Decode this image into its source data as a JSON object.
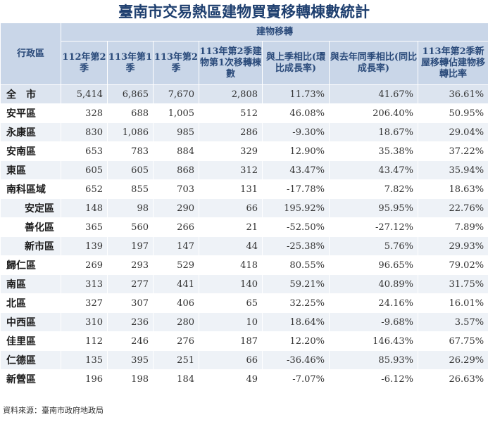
{
  "title": "臺南市交易熱區建物買賣移轉棟數統計",
  "header": {
    "region": "行政區",
    "group": "建物移轉",
    "columns": [
      "112年第2季",
      "113年第1季",
      "113年第2季",
      "113年第2季建物第1次移轉棟數",
      "與上季相比(環比成長率)",
      "與去年同季相比(同比成長率)",
      "113年第2季新屋移轉佔建物移轉比率"
    ]
  },
  "rows": [
    {
      "name": "全　市",
      "values": [
        "5,414",
        "6,865",
        "7,670",
        "2,808",
        "11.73%",
        "41.67%",
        "36.61%"
      ]
    },
    {
      "name": "安平區",
      "values": [
        "328",
        "688",
        "1,005",
        "512",
        "46.08%",
        "206.40%",
        "50.95%"
      ]
    },
    {
      "name": "永康區",
      "values": [
        "830",
        "1,086",
        "985",
        "286",
        "-9.30%",
        "18.67%",
        "29.04%"
      ]
    },
    {
      "name": "安南區",
      "values": [
        "653",
        "783",
        "884",
        "329",
        "12.90%",
        "35.38%",
        "37.22%"
      ]
    },
    {
      "name": "東區",
      "values": [
        "605",
        "605",
        "868",
        "312",
        "43.47%",
        "43.47%",
        "35.94%"
      ]
    },
    {
      "name": "南科區域",
      "values": [
        "652",
        "855",
        "703",
        "131",
        "-17.78%",
        "7.82%",
        "18.63%"
      ]
    },
    {
      "name": "安定區",
      "values": [
        "148",
        "98",
        "290",
        "66",
        "195.92%",
        "95.95%",
        "22.76%"
      ]
    },
    {
      "name": "善化區",
      "values": [
        "365",
        "560",
        "266",
        "21",
        "-52.50%",
        "-27.12%",
        "7.89%"
      ]
    },
    {
      "name": "新市區",
      "values": [
        "139",
        "197",
        "147",
        "44",
        "-25.38%",
        "5.76%",
        "29.93%"
      ]
    },
    {
      "name": "歸仁區",
      "values": [
        "269",
        "293",
        "529",
        "418",
        "80.55%",
        "96.65%",
        "79.02%"
      ]
    },
    {
      "name": "南區",
      "values": [
        "313",
        "277",
        "441",
        "140",
        "59.21%",
        "40.89%",
        "31.75%"
      ]
    },
    {
      "name": "北區",
      "values": [
        "327",
        "307",
        "406",
        "65",
        "32.25%",
        "24.16%",
        "16.01%"
      ]
    },
    {
      "name": "中西區",
      "values": [
        "310",
        "236",
        "280",
        "10",
        "18.64%",
        "-9.68%",
        "3.57%"
      ]
    },
    {
      "name": "佳里區",
      "values": [
        "112",
        "246",
        "276",
        "187",
        "12.20%",
        "146.43%",
        "67.75%"
      ]
    },
    {
      "name": "仁德區",
      "values": [
        "135",
        "395",
        "251",
        "66",
        "-36.46%",
        "85.93%",
        "26.29%"
      ]
    },
    {
      "name": "新營區",
      "values": [
        "196",
        "198",
        "184",
        "49",
        "-7.07%",
        "-6.12%",
        "26.63%"
      ]
    }
  ],
  "source": "資料來源：臺南市政府地政局"
}
